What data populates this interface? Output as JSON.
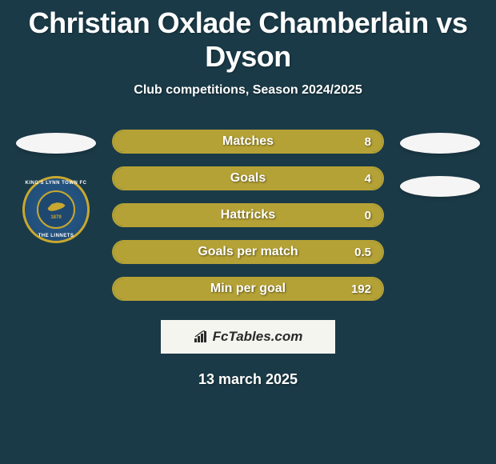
{
  "title": "Christian Oxlade Chamberlain vs Dyson",
  "subtitle": "Club competitions, Season 2024/2025",
  "date": "13 march 2025",
  "branding": "FcTables.com",
  "colors": {
    "background": "#1a3a47",
    "bar_border": "#b5a236",
    "bar_fill": "#b5a236",
    "oval": "#f5f5f5",
    "text": "#ffffff",
    "brand_bg": "#f5f5f0",
    "brand_text": "#2a2a2a",
    "badge_outer": "#2a5d8f",
    "badge_border": "#c9a82f"
  },
  "badge": {
    "top_text": "KING'S LYNN TOWN FC",
    "bottom_text": "THE LINNETS",
    "year": "1879"
  },
  "stats": [
    {
      "label": "Matches",
      "value": "8",
      "fill_pct": 100
    },
    {
      "label": "Goals",
      "value": "4",
      "fill_pct": 100
    },
    {
      "label": "Hattricks",
      "value": "0",
      "fill_pct": 100
    },
    {
      "label": "Goals per match",
      "value": "0.5",
      "fill_pct": 100
    },
    {
      "label": "Min per goal",
      "value": "192",
      "fill_pct": 100
    }
  ],
  "left_ovals": 1,
  "right_ovals": 2
}
